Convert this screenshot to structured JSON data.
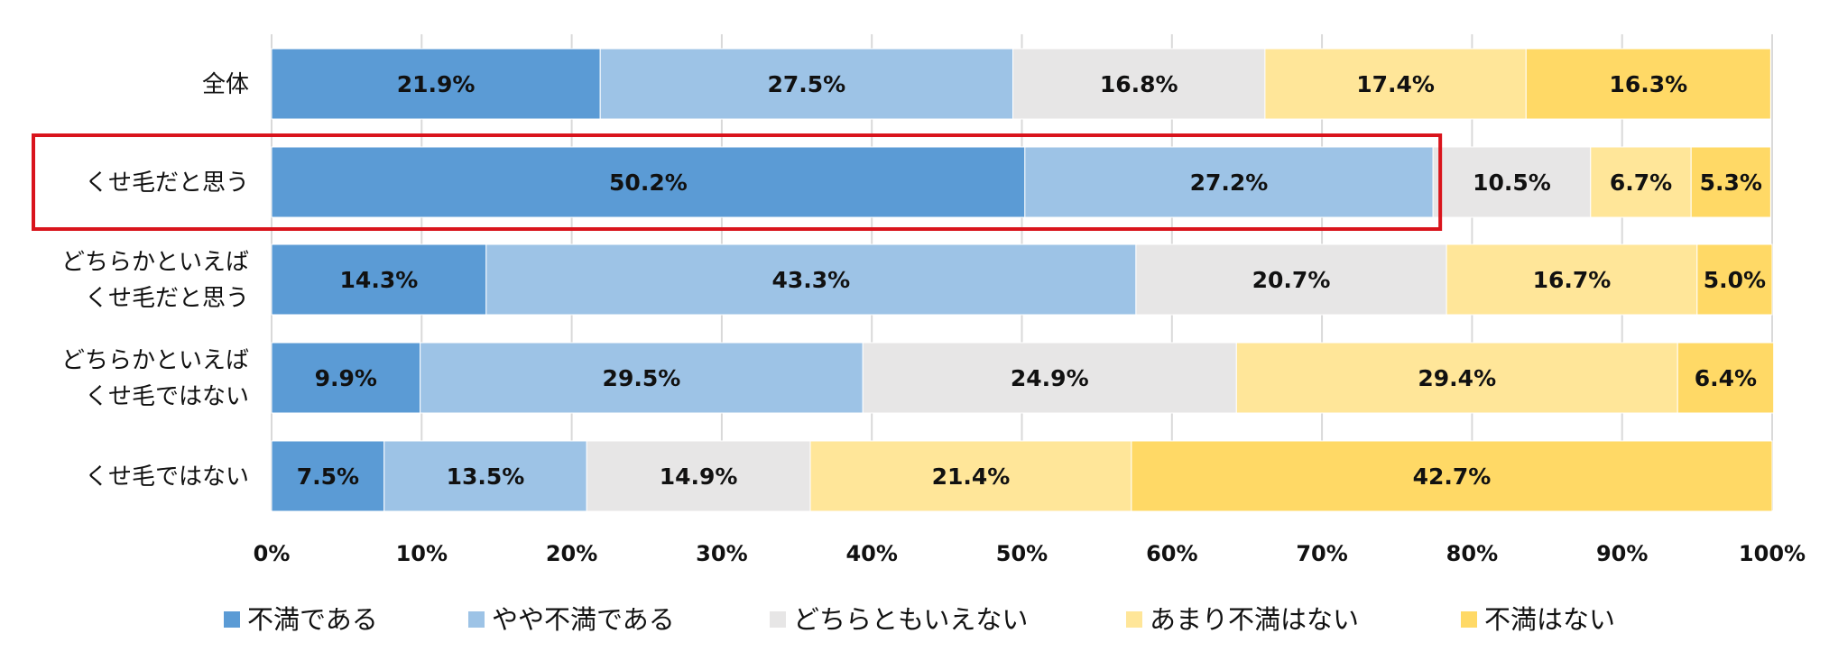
{
  "chart_data": {
    "type": "bar",
    "orientation": "horizontal",
    "stacked": "percent",
    "categories": [
      "全体",
      "くせ毛だと思う",
      "どちらかといえば\nくせ毛だと思う",
      "どちらかといえば\nくせ毛ではない",
      "くせ毛ではない"
    ],
    "series": [
      {
        "name": "不満である",
        "color": "#5b9bd5",
        "values": [
          21.9,
          50.2,
          14.3,
          9.9,
          7.5
        ],
        "labels": [
          "21.9%",
          "50.2%",
          "14.3%",
          "9.9%",
          "7.5%"
        ]
      },
      {
        "name": "やや不満である",
        "color": "#9dc3e6",
        "values": [
          27.5,
          27.2,
          43.3,
          29.5,
          13.5
        ],
        "labels": [
          "27.5%",
          "27.2%",
          "43.3%",
          "29.5%",
          "13.5%"
        ]
      },
      {
        "name": "どちらともいえない",
        "color": "#e7e6e6",
        "values": [
          16.8,
          10.5,
          20.7,
          24.9,
          14.9
        ],
        "labels": [
          "16.8%",
          "10.5%",
          "20.7%",
          "24.9%",
          "14.9%"
        ]
      },
      {
        "name": "あまり不満はない",
        "color": "#ffe699",
        "values": [
          17.4,
          6.7,
          16.7,
          29.4,
          21.4
        ],
        "labels": [
          "17.4%",
          "6.7%",
          "16.7%",
          "29.4%",
          "21.4%"
        ]
      },
      {
        "name": "不満はない",
        "color": "#ffd966",
        "values": [
          16.3,
          5.3,
          5.0,
          6.4,
          42.7
        ],
        "labels": [
          "16.3%",
          "5.3%",
          "5.0%",
          "6.4%",
          "42.7%"
        ]
      }
    ],
    "x_ticks": [
      "0%",
      "10%",
      "20%",
      "30%",
      "40%",
      "50%",
      "60%",
      "70%",
      "80%",
      "90%",
      "100%"
    ],
    "xlim": [
      0,
      100
    ],
    "grid": true,
    "legend_position": "bottom",
    "highlight": {
      "category_index": 1,
      "series_span": [
        0,
        1
      ],
      "color": "#d9141c"
    }
  }
}
